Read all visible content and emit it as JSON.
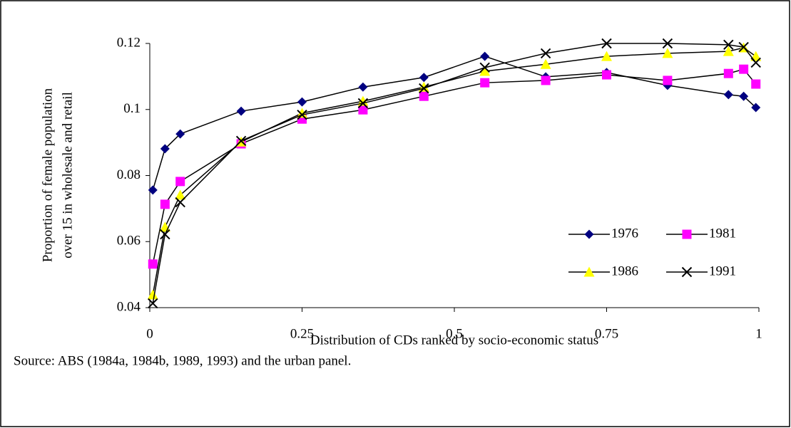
{
  "chart_data": {
    "type": "line",
    "ylabel": [
      "Proportion of female population",
      "over 15 in wholesale and retail"
    ],
    "xlabel": "Distribution of CDs ranked by socio-economic status",
    "note": "Source:  ABS (1984a, 1984b, 1989, 1993) and the urban panel.",
    "x": [
      0.005,
      0.025,
      0.05,
      0.15,
      0.25,
      0.35,
      0.45,
      0.55,
      0.65,
      0.75,
      0.85,
      0.95,
      0.975,
      0.995
    ],
    "series": [
      {
        "name": "1976",
        "color": "#000080",
        "marker": "diamond",
        "values": [
          0.0756,
          0.0881,
          0.0926,
          0.0995,
          0.1023,
          0.1068,
          0.1097,
          0.1161,
          0.1099,
          0.1112,
          0.1073,
          0.1045,
          0.104,
          0.1006
        ]
      },
      {
        "name": "1981",
        "color": "#ff00ff",
        "marker": "square",
        "values": [
          0.0532,
          0.0713,
          0.0782,
          0.0896,
          0.0971,
          0.0999,
          0.104,
          0.1081,
          0.1088,
          0.1105,
          0.1088,
          0.1109,
          0.1122,
          0.1077
        ]
      },
      {
        "name": "1986",
        "color": "#ffff00",
        "marker": "triangle",
        "values": [
          0.0439,
          0.0644,
          0.0741,
          0.0902,
          0.0989,
          0.1025,
          0.1068,
          0.1116,
          0.1137,
          0.1161,
          0.117,
          0.1176,
          0.1187,
          0.1161
        ]
      },
      {
        "name": "1991",
        "color": "#000000",
        "marker": "x",
        "values": [
          0.0413,
          0.0622,
          0.0719,
          0.0905,
          0.0984,
          0.1019,
          0.1064,
          0.1127,
          0.117,
          0.12,
          0.12,
          0.1196,
          0.1189,
          0.1142
        ]
      }
    ],
    "xlim": [
      0,
      1
    ],
    "xticks": [
      0,
      0.25,
      0.5,
      0.75,
      1
    ],
    "ylim": [
      0.04,
      0.12
    ],
    "yticks": [
      0.04,
      0.06,
      0.08,
      0.1,
      0.12
    ],
    "grid": false,
    "legend": "lower right"
  }
}
